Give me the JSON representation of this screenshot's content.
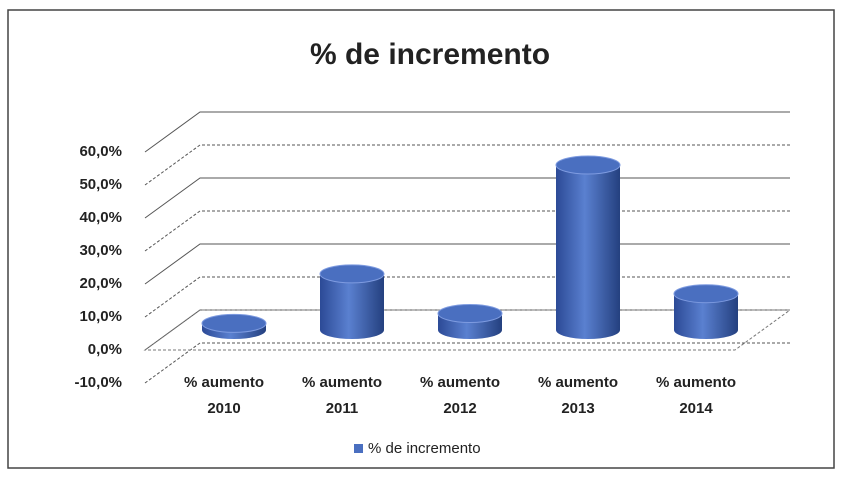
{
  "chart_data": {
    "type": "bar3d",
    "title": "% de incremento",
    "categories": [
      "% aumento 2010",
      "% aumento 2011",
      "% aumento 2012",
      "% aumento 2013",
      "% aumento 2014"
    ],
    "series": [
      {
        "name": "% de incremento",
        "color": "#4a6fc0",
        "values": [
          2,
          17,
          5,
          50,
          11
        ]
      }
    ],
    "ylim": [
      -10,
      60
    ],
    "yticks": [
      {
        "value": -10,
        "label": "-10,0%"
      },
      {
        "value": 0,
        "label": "0,0%"
      },
      {
        "value": 10,
        "label": "10,0%"
      },
      {
        "value": 20,
        "label": "20,0%"
      },
      {
        "value": 30,
        "label": "30,0%"
      },
      {
        "value": 40,
        "label": "40,0%"
      },
      {
        "value": 50,
        "label": "50,0%"
      },
      {
        "value": 60,
        "label": "60,0%"
      }
    ],
    "grid": true,
    "legend": "bottom"
  }
}
